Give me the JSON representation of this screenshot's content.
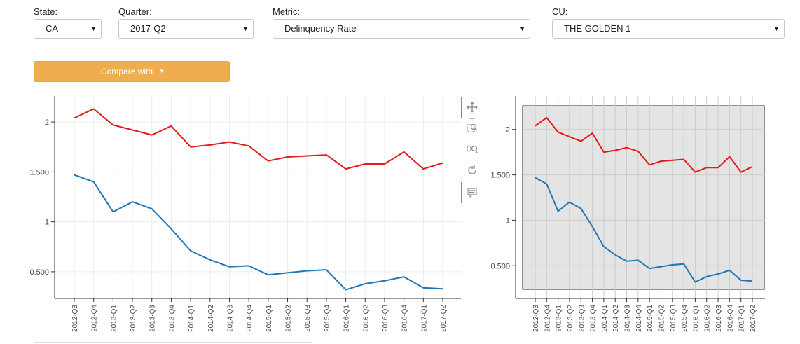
{
  "controls": {
    "state": {
      "label": "State:",
      "value": "CA"
    },
    "quarter": {
      "label": "Quarter:",
      "value": "2017-Q2"
    },
    "metric": {
      "label": "Metric:",
      "value": "Delinquency Rate"
    },
    "cu": {
      "label": "CU:",
      "value": "THE GOLDEN 1"
    }
  },
  "compare_button": {
    "label": "Compare with",
    "extra": "."
  },
  "toolbar": {
    "tools": [
      "pan-icon",
      "box-zoom-icon",
      "wheel-zoom-icon",
      "reset-icon",
      "hover-icon"
    ]
  },
  "chart_data": [
    {
      "type": "line",
      "categories": [
        "2012-Q3",
        "2012-Q4",
        "2013-Q1",
        "2013-Q2",
        "2013-Q3",
        "2013-Q4",
        "2014-Q1",
        "2014-Q2",
        "2014-Q3",
        "2014-Q4",
        "2015-Q1",
        "2015-Q2",
        "2015-Q3",
        "2015-Q4",
        "2016-Q1",
        "2016-Q2",
        "2016-Q3",
        "2016-Q4",
        "2017-Q1",
        "2017-Q2"
      ],
      "series": [
        {
          "color": "#e41a1c",
          "values": [
            2.04,
            2.13,
            1.97,
            1.92,
            1.87,
            1.96,
            1.75,
            1.77,
            1.8,
            1.76,
            1.61,
            1.65,
            1.66,
            1.67,
            1.53,
            1.58,
            1.58,
            1.7,
            1.53,
            1.59
          ]
        },
        {
          "color": "#1f77b4",
          "values": [
            1.47,
            1.4,
            1.1,
            1.2,
            1.13,
            0.93,
            0.71,
            0.62,
            0.55,
            0.56,
            0.47,
            0.49,
            0.51,
            0.52,
            0.32,
            0.38,
            0.41,
            0.45,
            0.34,
            0.33
          ]
        }
      ],
      "yticks": [
        "0.500",
        "1",
        "1.500",
        "2"
      ],
      "ylim": [
        0.24,
        2.26
      ],
      "grid": true,
      "background": "#ffffff"
    },
    {
      "type": "line",
      "categories": [
        "2012-Q3",
        "2012-Q4",
        "2013-Q1",
        "2013-Q2",
        "2013-Q3",
        "2013-Q4",
        "2014-Q1",
        "2014-Q2",
        "2014-Q3",
        "2014-Q4",
        "2015-Q1",
        "2015-Q2",
        "2015-Q3",
        "2015-Q4",
        "2016-Q1",
        "2016-Q2",
        "2016-Q3",
        "2016-Q4",
        "2017-Q1",
        "2017-Q2"
      ],
      "series": [
        {
          "color": "#e41a1c",
          "values": [
            2.04,
            2.13,
            1.97,
            1.92,
            1.87,
            1.96,
            1.75,
            1.77,
            1.8,
            1.76,
            1.61,
            1.65,
            1.66,
            1.67,
            1.53,
            1.58,
            1.58,
            1.7,
            1.53,
            1.59
          ]
        },
        {
          "color": "#1f77b4",
          "values": [
            1.47,
            1.4,
            1.1,
            1.2,
            1.13,
            0.93,
            0.71,
            0.62,
            0.55,
            0.56,
            0.47,
            0.49,
            0.51,
            0.52,
            0.32,
            0.38,
            0.41,
            0.45,
            0.34,
            0.33
          ]
        }
      ],
      "yticks": [
        "0.500",
        "1",
        "1.500",
        "2"
      ],
      "ylim": [
        0.24,
        2.26
      ],
      "grid": true,
      "background": "#e4e4e4"
    }
  ]
}
